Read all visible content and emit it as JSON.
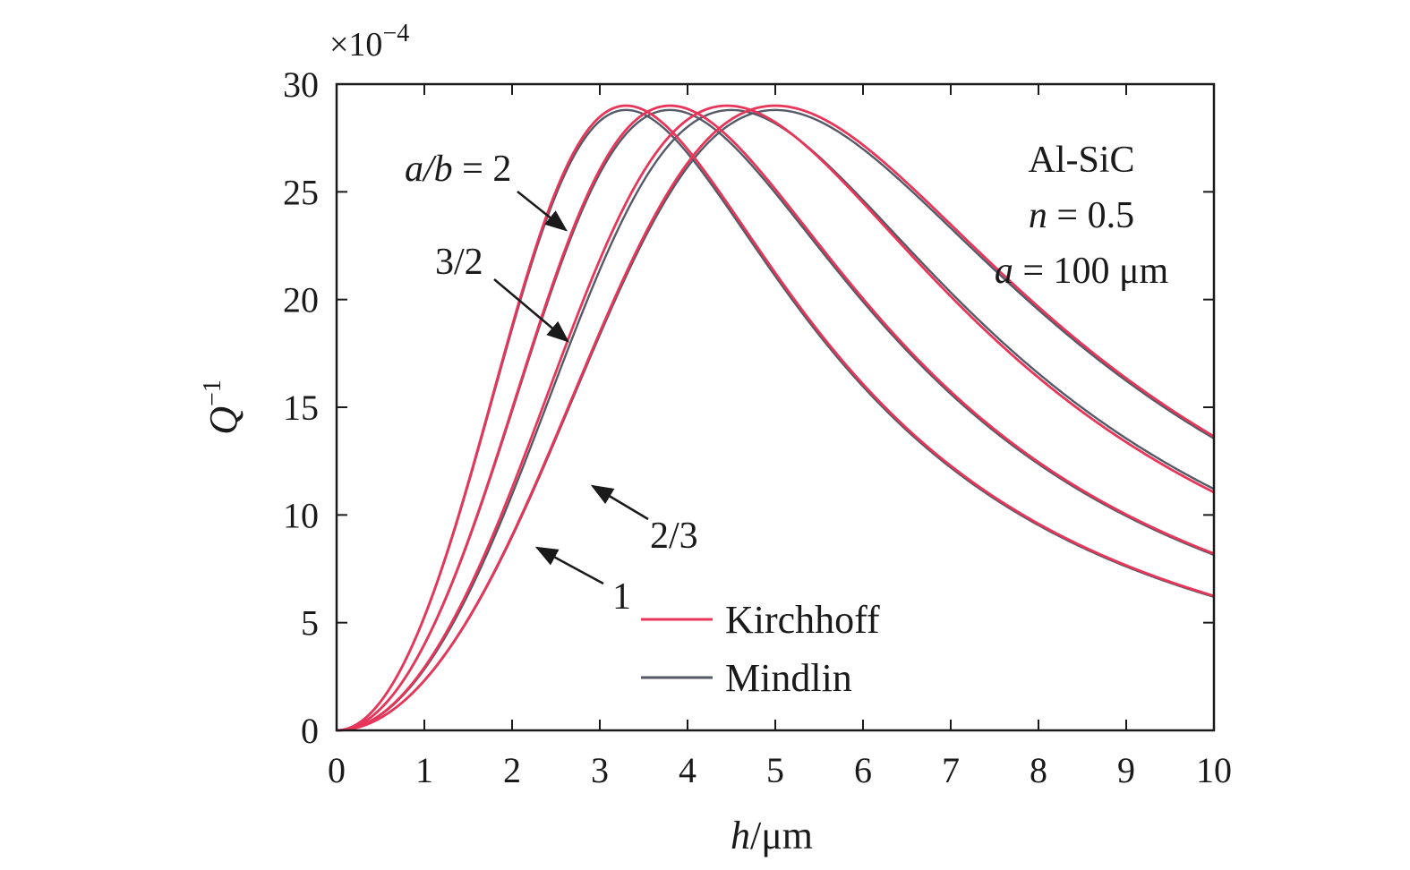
{
  "chart_data": {
    "type": "line",
    "title": "",
    "xlabel": {
      "var": "h",
      "unit": "/μm"
    },
    "ylabel": {
      "var": "Q",
      "sup": "−1"
    },
    "y_scale_label": {
      "prefix": "×10",
      "exp": "−4"
    },
    "xlim": [
      0,
      10
    ],
    "ylim": [
      0,
      30
    ],
    "xticks": [
      "0",
      "1",
      "2",
      "3",
      "4",
      "5",
      "6",
      "7",
      "8",
      "9",
      "10"
    ],
    "yticks": [
      "0",
      "5",
      "10",
      "15",
      "20",
      "25",
      "30"
    ],
    "grid": false,
    "legend": {
      "placement": "bottom-center",
      "entries": [
        {
          "label": "Kirchhoff",
          "color": "#e8365a"
        },
        {
          "label": "Mindlin",
          "color": "#555a66"
        }
      ]
    },
    "info_box": {
      "material": "Al-SiC",
      "n_line": {
        "var": "n",
        "rest": " = 0.5"
      },
      "a_line": {
        "var": "a",
        "rest": " = 100 μm"
      }
    },
    "series_labels": {
      "ab2": {
        "var": "a/b",
        "rest": " = 2"
      },
      "ab32": "3/2",
      "ab23": "2/3",
      "ab1": "1"
    },
    "series": [
      {
        "ratio": "2",
        "model": "Kirchhoff",
        "color": "#e8365a",
        "peak_x": 3.3,
        "peak_y": 29.0
      },
      {
        "ratio": "2",
        "model": "Mindlin",
        "color": "#555a66",
        "peak_x": 3.3,
        "peak_y": 28.8
      },
      {
        "ratio": "3/2",
        "model": "Kirchhoff",
        "color": "#e8365a",
        "peak_x": 3.8,
        "peak_y": 29.0
      },
      {
        "ratio": "3/2",
        "model": "Mindlin",
        "color": "#555a66",
        "peak_x": 3.8,
        "peak_y": 28.8
      },
      {
        "ratio": "1",
        "model": "Kirchhoff",
        "color": "#e8365a",
        "peak_x": 4.45,
        "peak_y": 29.0
      },
      {
        "ratio": "1",
        "model": "Mindlin",
        "color": "#555a66",
        "peak_x": 4.5,
        "peak_y": 28.8
      },
      {
        "ratio": "2/3",
        "model": "Kirchhoff",
        "color": "#e8365a",
        "peak_x": 5.0,
        "peak_y": 29.0
      },
      {
        "ratio": "2/3",
        "model": "Mindlin",
        "color": "#555a66",
        "peak_x": 5.0,
        "peak_y": 28.8
      }
    ]
  }
}
